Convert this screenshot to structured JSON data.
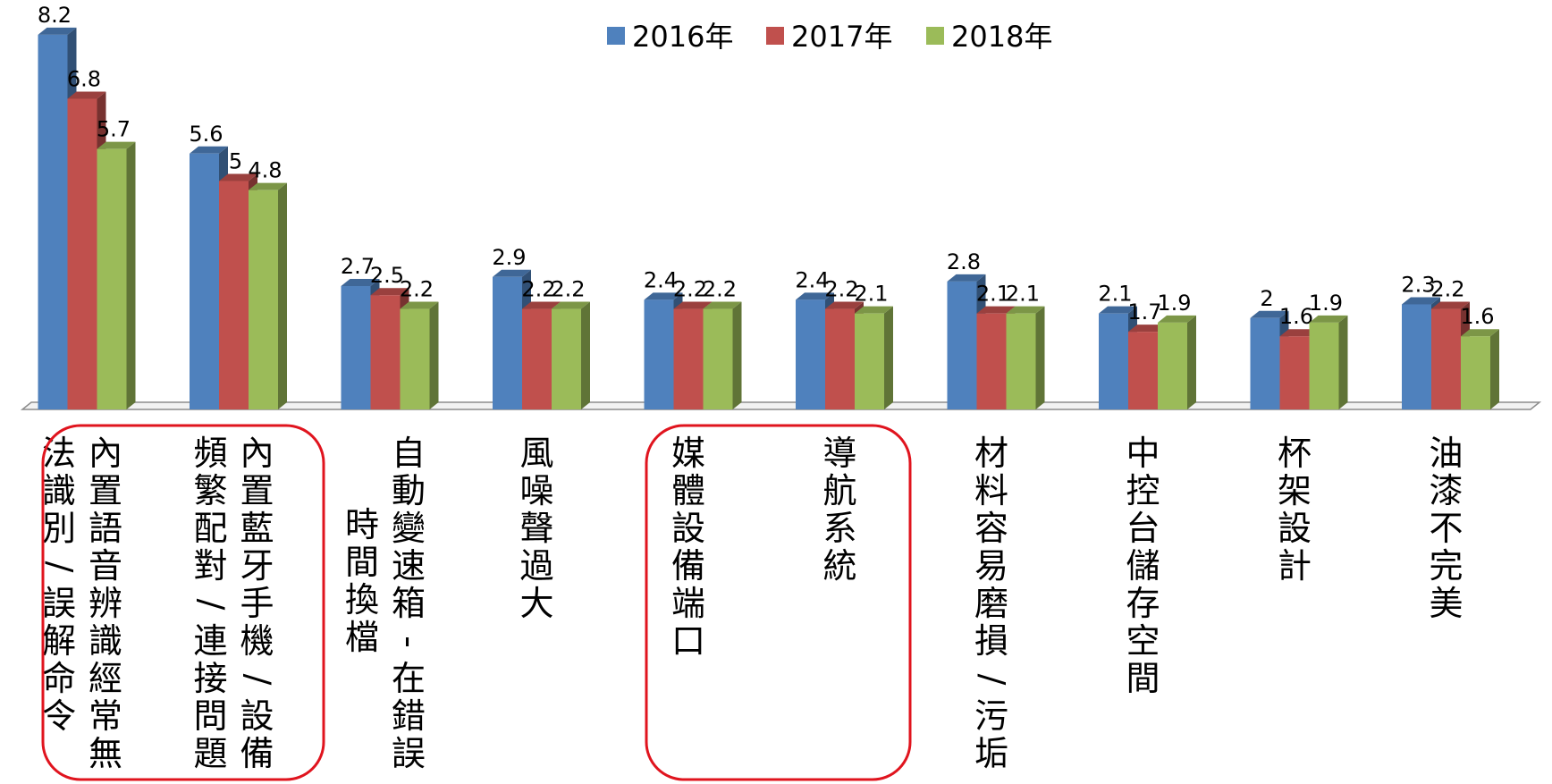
{
  "chart_data": {
    "type": "bar",
    "categories": [
      "內置語音辨識經常無法識別/誤解命令",
      "內置藍牙手機/設備頻繁配對/連接問題",
      "自動變速箱 - 在錯誤時間換檔",
      "風噪聲過大",
      "媒體設備端口",
      "導航系統",
      "材料容易磨損/污垢",
      "中控台儲存空間",
      "杯架設計",
      "油漆不完美"
    ],
    "category_columns": [
      [
        "內置語音辨識經常無",
        "法識別/誤解命令"
      ],
      [
        "內置藍牙手機/設備",
        "頻繁配對/連接問題"
      ],
      [
        "自動變速箱 - 在錯誤",
        "時間換檔"
      ],
      [
        "風噪聲過大"
      ],
      [
        "媒體設備端口"
      ],
      [
        "導航系統"
      ],
      [
        "材料容易磨損/污垢"
      ],
      [
        "中控台儲存空間"
      ],
      [
        "杯架設計"
      ],
      [
        "油漆不完美"
      ]
    ],
    "series": [
      {
        "name": "2016年",
        "color": "#4F81BD",
        "values": [
          8.2,
          5.6,
          2.7,
          2.9,
          2.4,
          2.4,
          2.8,
          2.1,
          2,
          2.3
        ]
      },
      {
        "name": "2017年",
        "color": "#C0504D",
        "values": [
          6.8,
          5,
          2.5,
          2.2,
          2.2,
          2.2,
          2.1,
          1.7,
          1.6,
          2.2
        ]
      },
      {
        "name": "2018年",
        "color": "#9BBB59",
        "values": [
          5.7,
          4.8,
          2.2,
          2.2,
          2.2,
          2.1,
          2.1,
          1.9,
          1.9,
          1.6
        ]
      }
    ],
    "ylim": [
      0,
      9
    ],
    "legend": "top",
    "grid": false,
    "highlight_color": "#E0141E",
    "highlighted_groups": [
      [
        0,
        1
      ],
      [
        4,
        5
      ]
    ]
  }
}
